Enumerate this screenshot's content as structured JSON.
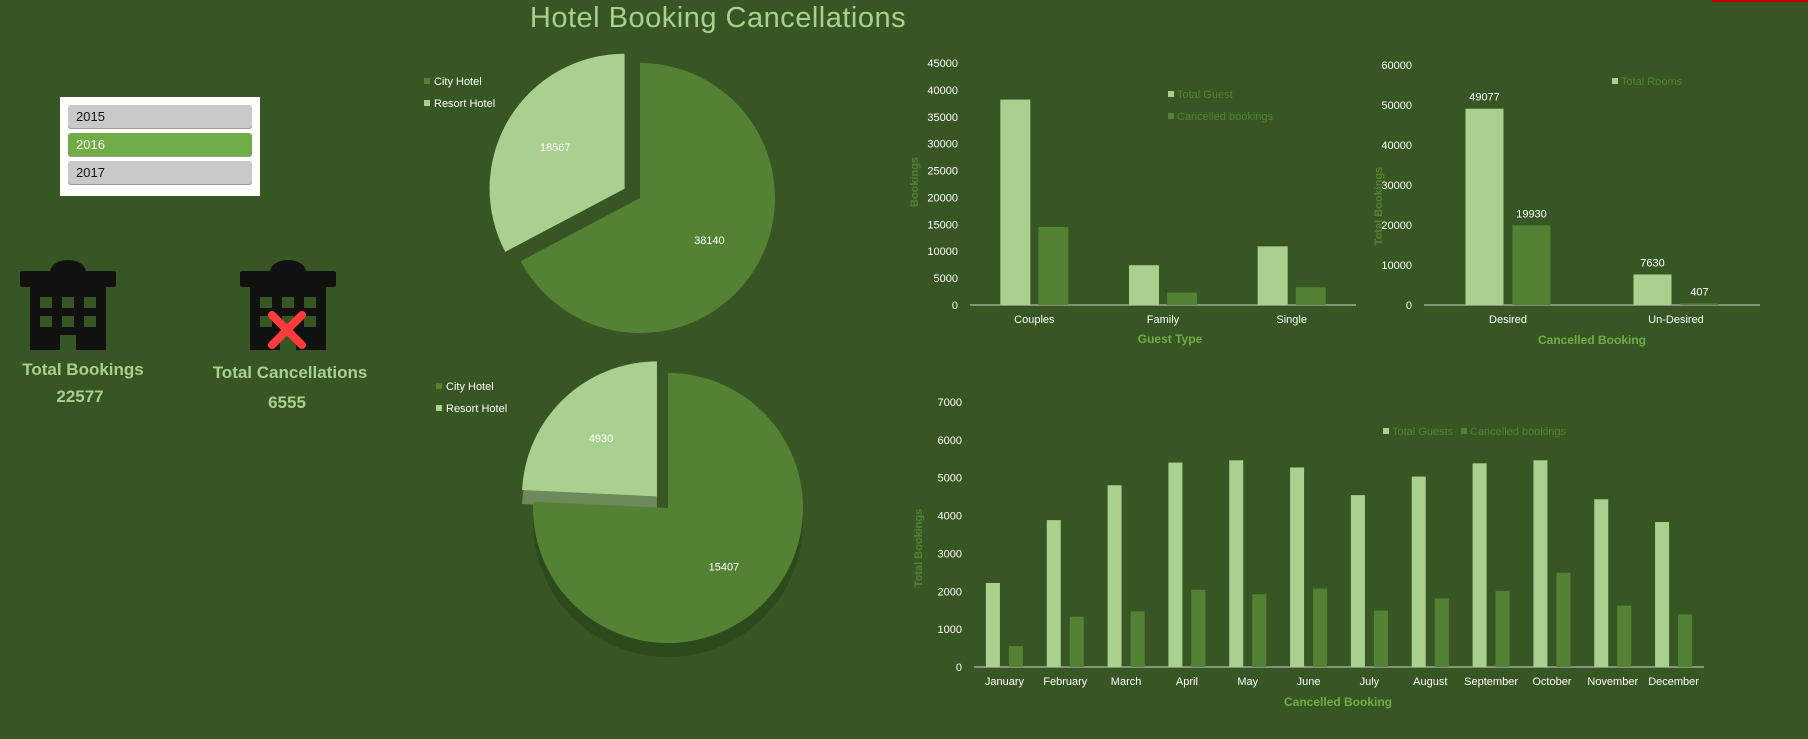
{
  "title": "Hotel Booking Cancellations",
  "colors": {
    "background": "#375623",
    "light": "#a9d08e",
    "dark": "#548235",
    "accent": "#70ad47",
    "cancel_x": "#ff3b3b"
  },
  "slicer": {
    "items": [
      {
        "label": "2015",
        "selected": false
      },
      {
        "label": "2016",
        "selected": true
      },
      {
        "label": "2017",
        "selected": false
      }
    ]
  },
  "kpis": {
    "total_bookings": {
      "label": "Total Bookings",
      "value": "22577",
      "icon": "hotel-building-icon"
    },
    "total_cancellations": {
      "label": "Total Cancellations",
      "value": "6555",
      "icon": "hotel-cancelled-icon"
    }
  },
  "chart_data": [
    {
      "type": "pie",
      "legend": [
        "City Hotel",
        "Resort Hotel"
      ],
      "slices": [
        {
          "name": "Resort Hotel",
          "value": 18567,
          "label": "18567",
          "color": "#a9d08e"
        },
        {
          "name": "City Hotel",
          "value": 38140,
          "label": "38140",
          "color": "#548235"
        }
      ]
    },
    {
      "type": "pie",
      "legend": [
        "City Hotel",
        "Resort Hotel"
      ],
      "slices": [
        {
          "name": "Resort Hotel",
          "value": 4930,
          "label": "4930",
          "color": "#a9d08e"
        },
        {
          "name": "City Hotel",
          "value": 15407,
          "label": "15407",
          "color": "#548235"
        }
      ]
    },
    {
      "type": "bar",
      "categories": [
        "Couples",
        "Family",
        "Single"
      ],
      "series": [
        {
          "name": "Total Guest",
          "values": [
            38200,
            7400,
            10900
          ],
          "color": "#a9d08e"
        },
        {
          "name": "Cancelled bookings",
          "values": [
            14500,
            2300,
            3300
          ],
          "color": "#548235"
        }
      ],
      "xlabel": "Guest Type",
      "ylabel": "Bookings",
      "ylim": [
        0,
        45000
      ],
      "yticks": [
        "0",
        "5000",
        "10000",
        "15000",
        "20000",
        "25000",
        "30000",
        "35000",
        "40000",
        "45000"
      ],
      "legend_position": "top-right"
    },
    {
      "type": "bar",
      "categories": [
        "Desired",
        "Un-Desired"
      ],
      "series": [
        {
          "name": "Total Rooms",
          "values": [
            49077,
            7630
          ],
          "labels": [
            "49077",
            "7630"
          ],
          "color": "#a9d08e"
        },
        {
          "name": "",
          "values": [
            19930,
            407
          ],
          "labels": [
            "19930",
            "407"
          ],
          "color": "#548235"
        }
      ],
      "xlabel": "Cancelled  Booking",
      "ylabel": "Total Bookings",
      "ylim": [
        0,
        60000
      ],
      "yticks": [
        "0",
        "10000",
        "20000",
        "30000",
        "40000",
        "50000",
        "60000"
      ],
      "legend_position": "top-right"
    },
    {
      "type": "bar",
      "categories": [
        "January",
        "February",
        "March",
        "April",
        "May",
        "June",
        "July",
        "August",
        "September",
        "October",
        "November",
        "December"
      ],
      "series": [
        {
          "name": "Total Guests",
          "values": [
            2220,
            3880,
            4800,
            5400,
            5460,
            5270,
            4540,
            5030,
            5380,
            5460,
            4430,
            3830
          ],
          "color": "#a9d08e"
        },
        {
          "name": "Cancelled bookings",
          "values": [
            550,
            1330,
            1470,
            2040,
            1920,
            2070,
            1490,
            1810,
            2010,
            2490,
            1620,
            1390
          ],
          "color": "#548235"
        }
      ],
      "xlabel": "Cancelled  Booking",
      "ylabel": "Total Bookings",
      "ylim": [
        0,
        7000
      ],
      "yticks": [
        "0",
        "1000",
        "2000",
        "3000",
        "4000",
        "5000",
        "6000",
        "7000"
      ],
      "legend_position": "top-right"
    }
  ]
}
